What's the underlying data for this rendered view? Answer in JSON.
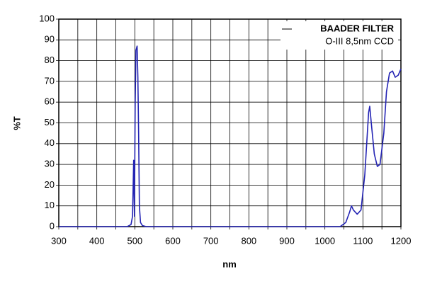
{
  "chart_data": {
    "type": "line",
    "legend_title": "BAADER FILTER",
    "legend_subtitle": "O-III 8,5nm CCD",
    "xlabel": "nm",
    "ylabel": "%T",
    "xlim": [
      300,
      1200
    ],
    "xticks": [
      300,
      400,
      500,
      600,
      700,
      800,
      900,
      1000,
      1100,
      1200
    ],
    "ylim": [
      0,
      100
    ],
    "yticks": [
      0,
      10,
      20,
      30,
      40,
      50,
      60,
      70,
      80,
      90,
      100
    ],
    "grid": true,
    "minor_grid": true,
    "series": [
      {
        "color": "#2424b4",
        "x": [
          300,
          480,
          490,
          494,
          497,
          499,
          501,
          503,
          506,
          508,
          510,
          512,
          515,
          520,
          530,
          1000,
          1040,
          1055,
          1065,
          1070,
          1075,
          1085,
          1095,
          1105,
          1115,
          1118,
          1122,
          1130,
          1138,
          1145,
          1155,
          1162,
          1170,
          1178,
          1185,
          1193,
          1200
        ],
        "values": [
          0,
          0,
          1,
          5,
          32,
          5,
          60,
          85,
          87,
          72,
          45,
          10,
          2,
          0.5,
          0,
          0,
          0,
          2,
          7,
          10,
          8,
          6,
          8,
          25,
          55,
          58,
          50,
          35,
          29,
          30,
          45,
          65,
          74,
          75,
          72,
          73,
          76
        ]
      }
    ]
  }
}
